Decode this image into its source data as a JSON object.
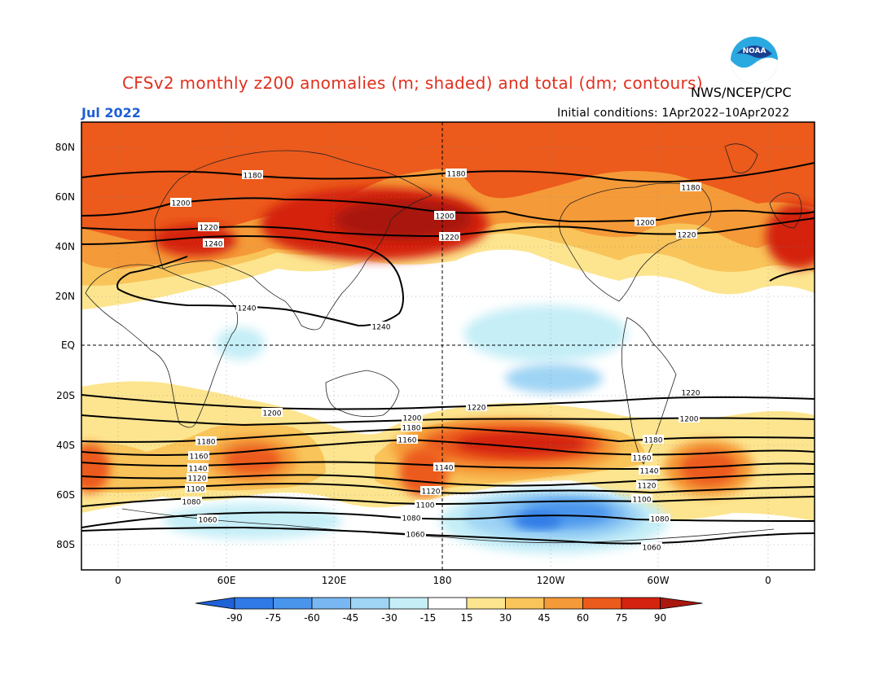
{
  "title": "CFSv2 monthly z200 anomalies (m; shaded) and total (dm; contours)",
  "agency": "NWS/NCEP/CPC",
  "month": "Jul 2022",
  "initial_conditions": "Initial conditions: 1Apr2022–10Apr2022",
  "logo_text": "NOAA",
  "lat_labels": [
    "80N",
    "60N",
    "40N",
    "20N",
    "EQ",
    "20S",
    "40S",
    "60S",
    "80S"
  ],
  "lon_labels": [
    "0",
    "60E",
    "120E",
    "180",
    "120W",
    "60W",
    "0"
  ],
  "colorbar": {
    "levels": [
      "-90",
      "-75",
      "-60",
      "-45",
      "-30",
      "-15",
      "15",
      "30",
      "45",
      "60",
      "75",
      "90"
    ],
    "colors": [
      "#1f62d8",
      "#2f7ae6",
      "#4a95ec",
      "#78b7f2",
      "#9fd4f4",
      "#c5eef7",
      "#ffffff",
      "#fde58f",
      "#f9c45a",
      "#f59a38",
      "#ec5a1c",
      "#d4230e",
      "#a9170f"
    ]
  },
  "contour_labels": {
    "n1180a": "1180",
    "n1180b": "1180",
    "n1180c": "1180",
    "n1200a": "1200",
    "n1200b": "1200",
    "n1200c": "1200",
    "n1220a": "1220",
    "n1220b": "1220",
    "n1220c": "1220",
    "n1240a": "1240",
    "n1240b": "1240",
    "n1240c": "1240",
    "s1220a": "1220",
    "s1220b": "1220",
    "s1200a": "1200",
    "s1200b": "1200",
    "s1200c": "1200",
    "s1180a": "1180",
    "s1180b": "1180",
    "s1180c": "1180",
    "s1160a": "1160",
    "s1160b": "1160",
    "s1160c": "1160",
    "s1140a": "1140",
    "s1140b": "1140",
    "s1140c": "1140",
    "s1120a": "1120",
    "s1120b": "1120",
    "s1120c": "1120",
    "s1100a": "1100",
    "s1100b": "1100",
    "s1100c": "1100",
    "s1080a": "1080",
    "s1080b": "1080",
    "s1080c": "1080",
    "s1060a": "1060",
    "s1060b": "1060",
    "s1060c": "1060"
  }
}
